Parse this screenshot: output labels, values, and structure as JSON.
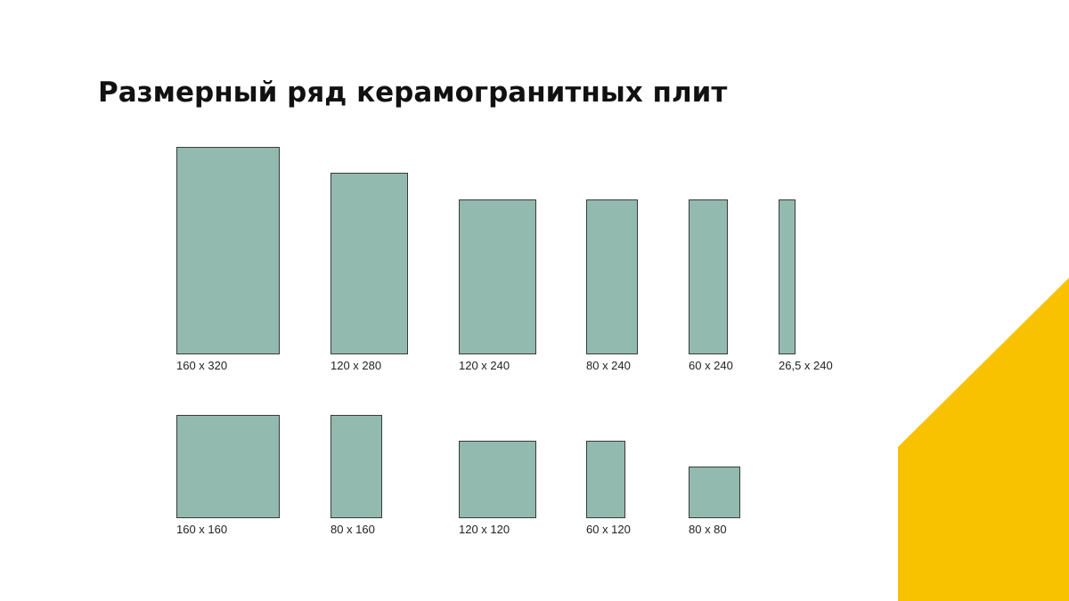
{
  "slide": {
    "title": "Размерный ряд керамогранитных плит"
  },
  "colors": {
    "tile_fill": "#93baae",
    "tile_border": "#3a3a3a",
    "accent": "#f9c200"
  },
  "rows": [
    {
      "tiles": [
        {
          "label": "160 х 320",
          "width": 160,
          "height": 320
        },
        {
          "label": "120 х 280",
          "width": 120,
          "height": 280
        },
        {
          "label": "120 х 240",
          "width": 120,
          "height": 240
        },
        {
          "label": "80 х 240",
          "width": 80,
          "height": 240
        },
        {
          "label": "60 х 240",
          "width": 60,
          "height": 240
        },
        {
          "label": "26,5 х 240",
          "width": 26.5,
          "height": 240
        }
      ]
    },
    {
      "tiles": [
        {
          "label": "160 х 160",
          "width": 160,
          "height": 160
        },
        {
          "label": "80 х 160",
          "width": 80,
          "height": 160
        },
        {
          "label": "120 х 120",
          "width": 120,
          "height": 120
        },
        {
          "label": "60 х 120",
          "width": 60,
          "height": 120
        },
        {
          "label": "80 х 80",
          "width": 80,
          "height": 80
        }
      ]
    }
  ]
}
